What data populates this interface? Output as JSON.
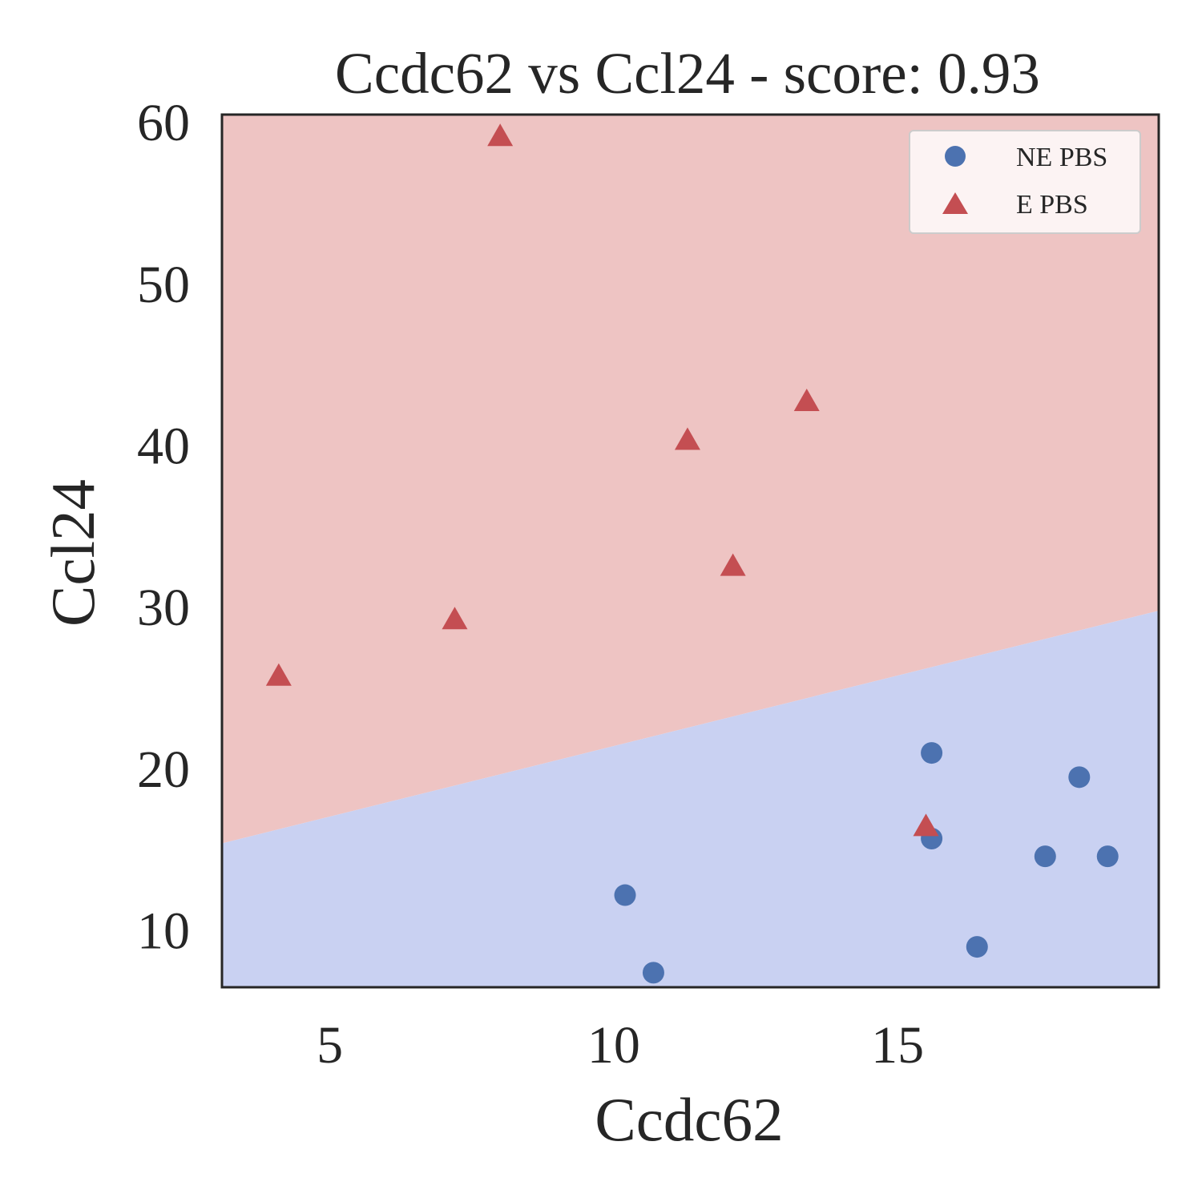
{
  "chart_data": {
    "type": "scatter",
    "title": "Ccdc62 vs Ccl24 - score: 0.93",
    "xlabel": "Ccdc62",
    "ylabel": "Ccl24",
    "xlim": [
      3.1,
      19.6
    ],
    "ylim": [
      6.5,
      60.5
    ],
    "xticks": [
      5,
      10,
      15
    ],
    "yticks": [
      10,
      20,
      30,
      40,
      50,
      60
    ],
    "grid": false,
    "legend_position": "top-right",
    "decision_boundary": {
      "points": [
        [
          3.1,
          15.4
        ],
        [
          19.6,
          29.8
        ]
      ],
      "upper_region_color": "#eec4c3",
      "lower_region_color": "#c9d1f2",
      "upper_class": "E PBS",
      "lower_class": "NE PBS"
    },
    "series": [
      {
        "name": "NE PBS",
        "marker": "circle",
        "color": "#4c72b0",
        "points": [
          [
            10.2,
            12.2
          ],
          [
            10.7,
            7.4
          ],
          [
            15.6,
            21.0
          ],
          [
            15.6,
            15.7
          ],
          [
            16.4,
            9.0
          ],
          [
            17.6,
            14.6
          ],
          [
            18.2,
            19.5
          ],
          [
            18.7,
            14.6
          ]
        ]
      },
      {
        "name": "E PBS",
        "marker": "triangle",
        "color": "#c44e52",
        "points": [
          [
            4.1,
            25.7
          ],
          [
            7.2,
            29.2
          ],
          [
            8.0,
            59.1
          ],
          [
            11.3,
            40.3
          ],
          [
            12.1,
            32.5
          ],
          [
            13.4,
            42.7
          ],
          [
            15.5,
            16.4
          ]
        ]
      }
    ]
  }
}
